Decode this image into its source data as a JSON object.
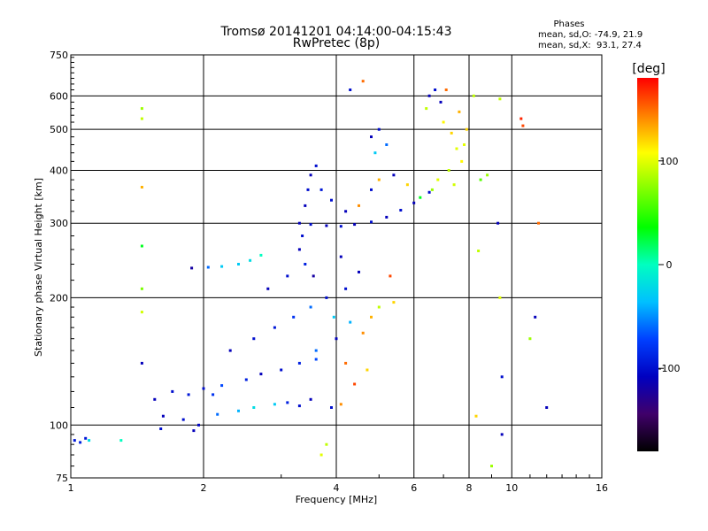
{
  "chart_data": {
    "type": "scatter",
    "title": "Tromsø 20141201 04:14:00-04:15:43",
    "subtitle": "RwPretec (8p)",
    "xlabel": "Frequency [MHz]",
    "ylabel": "Stationary phase Virtual Height [km]",
    "x_scale": "log",
    "y_scale": "log",
    "xlim": [
      1,
      16
    ],
    "ylim": [
      75,
      750
    ],
    "x_ticks": [
      1,
      2,
      4,
      6,
      8,
      10,
      16
    ],
    "y_ticks": [
      75,
      100,
      200,
      300,
      400,
      500,
      600,
      750
    ],
    "x_tick_labels": [
      "1",
      "2",
      "4",
      "6",
      "8",
      "10",
      "16"
    ],
    "y_tick_labels": [
      "75",
      "100",
      "200",
      "300",
      "400",
      "500",
      "600",
      "750"
    ],
    "grid": true,
    "stats": {
      "header": "Phases",
      "o_line": "mean, sd,O: -74.9, 21.9",
      "x_line": "mean, sd,X:  93.1, 27.4"
    },
    "colorbar": {
      "label": "[deg]",
      "range": [
        -180,
        180
      ],
      "ticks": [
        100,
        0,
        -100
      ],
      "tick_labels": [
        "100",
        "0",
        "-100"
      ],
      "colors": [
        "#ff0000",
        "#ff8000",
        "#ffff00",
        "#80ff00",
        "#00ff00",
        "#00ffc0",
        "#00c0ff",
        "#0040ff",
        "#0000c0",
        "#40006a",
        "#000000"
      ]
    },
    "series": [
      {
        "points": [
          [
            1.02,
            92,
            -95
          ],
          [
            1.05,
            91,
            -90
          ],
          [
            1.08,
            93,
            -95
          ],
          [
            1.1,
            92,
            -20
          ],
          [
            1.3,
            92,
            0
          ],
          [
            1.45,
            560,
            80
          ],
          [
            1.45,
            530,
            90
          ],
          [
            1.45,
            365,
            130
          ],
          [
            1.45,
            265,
            30
          ],
          [
            1.45,
            210,
            70
          ],
          [
            1.45,
            185,
            95
          ],
          [
            1.45,
            140,
            -110
          ],
          [
            1.88,
            235,
            -120
          ],
          [
            2.05,
            236,
            -60
          ],
          [
            2.2,
            237,
            -30
          ],
          [
            2.4,
            240,
            -30
          ],
          [
            2.55,
            245,
            -20
          ],
          [
            2.7,
            252,
            0
          ],
          [
            1.55,
            115,
            -110
          ],
          [
            1.7,
            120,
            -100
          ],
          [
            1.85,
            118,
            -95
          ],
          [
            2.0,
            122,
            -100
          ],
          [
            2.1,
            118,
            -80
          ],
          [
            1.62,
            105,
            -110
          ],
          [
            1.8,
            103,
            -100
          ],
          [
            1.95,
            100,
            -105
          ],
          [
            2.15,
            106,
            -60
          ],
          [
            2.4,
            108,
            -40
          ],
          [
            2.6,
            110,
            -20
          ],
          [
            2.9,
            112,
            -30
          ],
          [
            3.1,
            113,
            -90
          ],
          [
            3.3,
            111,
            -100
          ],
          [
            3.5,
            115,
            -110
          ],
          [
            1.6,
            98,
            -100
          ],
          [
            1.9,
            97,
            -110
          ],
          [
            2.2,
            124,
            -70
          ],
          [
            2.5,
            128,
            -90
          ],
          [
            2.7,
            132,
            -110
          ],
          [
            3.0,
            135,
            -100
          ],
          [
            3.3,
            140,
            -90
          ],
          [
            3.6,
            143,
            -70
          ],
          [
            2.3,
            150,
            -110
          ],
          [
            2.6,
            160,
            -100
          ],
          [
            2.9,
            170,
            -95
          ],
          [
            3.2,
            180,
            -80
          ],
          [
            3.5,
            190,
            -60
          ],
          [
            3.8,
            200,
            -100
          ],
          [
            2.8,
            210,
            -110
          ],
          [
            3.1,
            225,
            -100
          ],
          [
            3.4,
            240,
            -90
          ],
          [
            3.3,
            260,
            -110
          ],
          [
            3.35,
            280,
            -100
          ],
          [
            3.3,
            300,
            -110
          ],
          [
            3.5,
            298,
            -100
          ],
          [
            3.8,
            296,
            -110
          ],
          [
            4.1,
            295,
            -100
          ],
          [
            4.4,
            298,
            -110
          ],
          [
            4.8,
            302,
            -100
          ],
          [
            5.2,
            310,
            -110
          ],
          [
            5.6,
            322,
            -100
          ],
          [
            6.0,
            335,
            -110
          ],
          [
            6.2,
            345,
            30
          ],
          [
            6.5,
            355,
            -100
          ],
          [
            3.4,
            330,
            -110
          ],
          [
            3.45,
            360,
            -100
          ],
          [
            3.5,
            390,
            -110
          ],
          [
            3.6,
            410,
            -100
          ],
          [
            3.7,
            360,
            -95
          ],
          [
            3.9,
            340,
            -100
          ],
          [
            4.2,
            320,
            -110
          ],
          [
            4.5,
            330,
            140
          ],
          [
            4.8,
            360,
            -100
          ],
          [
            5.0,
            380,
            130
          ],
          [
            5.4,
            390,
            -110
          ],
          [
            5.8,
            370,
            120
          ],
          [
            4.8,
            480,
            -110
          ],
          [
            5.0,
            500,
            -100
          ],
          [
            5.2,
            460,
            -60
          ],
          [
            4.9,
            440,
            -30
          ],
          [
            4.3,
            620,
            -100
          ],
          [
            4.6,
            650,
            150
          ],
          [
            6.5,
            600,
            -110
          ],
          [
            6.7,
            620,
            -100
          ],
          [
            6.9,
            580,
            -110
          ],
          [
            6.4,
            560,
            90
          ],
          [
            7.0,
            520,
            110
          ],
          [
            7.3,
            490,
            120
          ],
          [
            7.5,
            450,
            100
          ],
          [
            7.7,
            420,
            110
          ],
          [
            7.2,
            400,
            90
          ],
          [
            6.8,
            380,
            100
          ],
          [
            6.6,
            360,
            80
          ],
          [
            7.4,
            370,
            95
          ],
          [
            7.8,
            460,
            100
          ],
          [
            7.9,
            500,
            120
          ],
          [
            7.6,
            550,
            130
          ],
          [
            7.1,
            620,
            150
          ],
          [
            8.2,
            600,
            90
          ],
          [
            8.5,
            380,
            60
          ],
          [
            8.8,
            390,
            80
          ],
          [
            9.4,
            590,
            90
          ],
          [
            9.3,
            300,
            -110
          ],
          [
            9.4,
            200,
            100
          ],
          [
            9.5,
            130,
            -100
          ],
          [
            9.5,
            95,
            -110
          ],
          [
            10.5,
            530,
            170
          ],
          [
            10.6,
            510,
            160
          ],
          [
            11.5,
            300,
            150
          ],
          [
            11.3,
            180,
            -110
          ],
          [
            11.0,
            160,
            80
          ],
          [
            12.0,
            110,
            -110
          ],
          [
            4.3,
            175,
            -40
          ],
          [
            4.6,
            165,
            140
          ],
          [
            4.8,
            180,
            130
          ],
          [
            5.0,
            190,
            90
          ],
          [
            4.2,
            140,
            150
          ],
          [
            4.4,
            125,
            160
          ],
          [
            4.7,
            135,
            120
          ],
          [
            4.1,
            112,
            140
          ],
          [
            3.8,
            90,
            90
          ],
          [
            3.7,
            85,
            100
          ],
          [
            3.9,
            110,
            -100
          ],
          [
            3.6,
            150,
            -60
          ],
          [
            4.0,
            160,
            -110
          ],
          [
            4.2,
            210,
            -100
          ],
          [
            4.5,
            230,
            -110
          ],
          [
            3.95,
            180,
            -30
          ],
          [
            4.1,
            250,
            -110
          ],
          [
            3.55,
            225,
            -120
          ],
          [
            5.3,
            225,
            160
          ],
          [
            5.4,
            195,
            120
          ],
          [
            8.3,
            105,
            120
          ],
          [
            9.0,
            80,
            80
          ],
          [
            8.4,
            258,
            90
          ]
        ]
      }
    ]
  }
}
